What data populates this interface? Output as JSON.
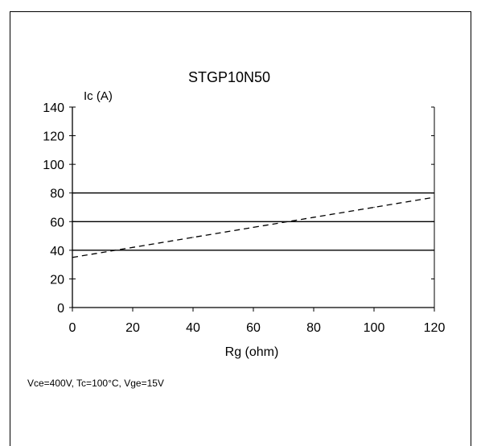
{
  "chart_data": {
    "type": "line",
    "title": "STGP10N50",
    "ylabel": "Ic (A)",
    "xlabel": "Rg (ohm)",
    "caption": "Vce=400V, Tc=100°C, Vge=15V",
    "xlim": [
      0,
      120
    ],
    "ylim": [
      0,
      140
    ],
    "x_ticks": [
      0,
      20,
      40,
      60,
      80,
      100,
      120
    ],
    "y_ticks": [
      0,
      20,
      40,
      60,
      80,
      100,
      120,
      140
    ],
    "grid": false,
    "reference_lines": [
      40,
      60,
      80
    ],
    "series": [
      {
        "style": "dashed",
        "x": [
          0,
          20,
          40,
          60,
          80,
          100,
          120
        ],
        "y": [
          35,
          42,
          49,
          56,
          63,
          70,
          77
        ]
      }
    ]
  }
}
